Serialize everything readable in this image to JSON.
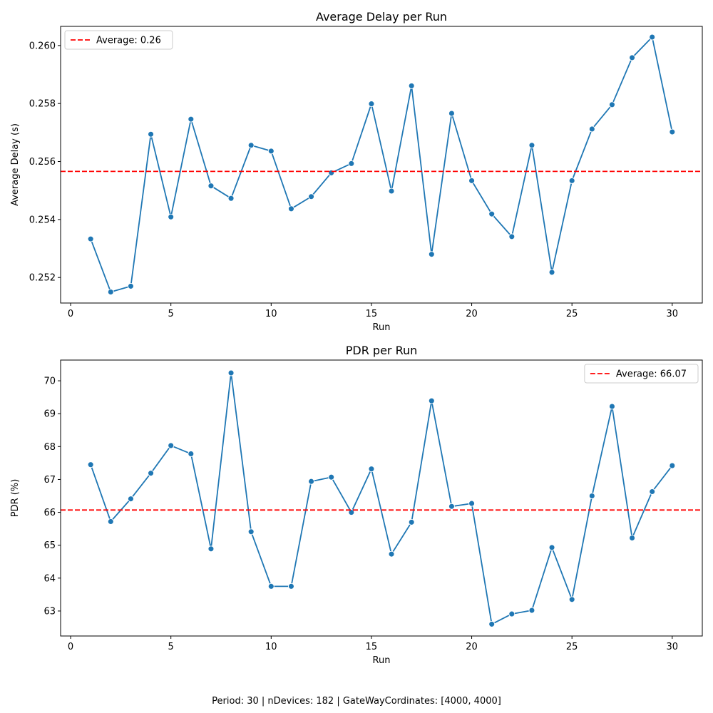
{
  "chart_data": [
    {
      "type": "line",
      "title": "Average Delay per Run",
      "xlabel": "Run",
      "ylabel": "Average Delay (s)",
      "xlim": [
        -0.5,
        31.5
      ],
      "ylim": [
        0.25112,
        0.26066
      ],
      "x_ticks": [
        0,
        5,
        10,
        15,
        20,
        25,
        30
      ],
      "x_tick_labels": [
        "0",
        "5",
        "10",
        "15",
        "20",
        "25",
        "30"
      ],
      "y_ticks": [
        0.252,
        0.254,
        0.256,
        0.258,
        0.26
      ],
      "y_tick_labels": [
        "0.252",
        "0.254",
        "0.256",
        "0.258",
        "0.260"
      ],
      "grid": false,
      "legend_position": "top-left",
      "series": [
        {
          "color": "#1f77b4",
          "marker": "circle",
          "x": [
            1,
            2,
            3,
            4,
            5,
            6,
            7,
            8,
            9,
            10,
            11,
            12,
            13,
            14,
            15,
            16,
            17,
            18,
            19,
            20,
            21,
            22,
            23,
            24,
            25,
            26,
            27,
            28,
            29,
            30
          ],
          "values": [
            0.25333,
            0.2515,
            0.2517,
            0.25694,
            0.25409,
            0.25746,
            0.25516,
            0.25473,
            0.25656,
            0.25636,
            0.25437,
            0.25479,
            0.25561,
            0.25593,
            0.25799,
            0.25498,
            0.25861,
            0.2528,
            0.25766,
            0.25534,
            0.25419,
            0.25341,
            0.25656,
            0.25218,
            0.25534,
            0.25712,
            0.25796,
            0.25958,
            0.26029,
            0.25702
          ]
        }
      ],
      "reference_line": {
        "label": "Average: 0.26",
        "value": 0.25566,
        "color": "#ff0000",
        "style": "dashed"
      }
    },
    {
      "type": "line",
      "title": "PDR per Run",
      "xlabel": "Run",
      "ylabel": "PDR (%)",
      "xlim": [
        -0.5,
        31.5
      ],
      "ylim": [
        62.24,
        70.63
      ],
      "x_ticks": [
        0,
        5,
        10,
        15,
        20,
        25,
        30
      ],
      "x_tick_labels": [
        "0",
        "5",
        "10",
        "15",
        "20",
        "25",
        "30"
      ],
      "y_ticks": [
        63,
        64,
        65,
        66,
        67,
        68,
        69,
        70
      ],
      "y_tick_labels": [
        "63",
        "64",
        "65",
        "66",
        "67",
        "68",
        "69",
        "70"
      ],
      "grid": false,
      "legend_position": "top-right",
      "series": [
        {
          "color": "#1f77b4",
          "marker": "circle",
          "x": [
            1,
            2,
            3,
            4,
            5,
            6,
            7,
            8,
            9,
            10,
            11,
            12,
            13,
            14,
            15,
            16,
            17,
            18,
            19,
            20,
            21,
            22,
            23,
            24,
            25,
            26,
            27,
            28,
            29,
            30
          ],
          "values": [
            67.45,
            65.72,
            66.41,
            67.19,
            68.03,
            67.78,
            64.89,
            70.24,
            65.41,
            63.75,
            63.75,
            66.94,
            67.07,
            66.0,
            67.32,
            64.73,
            65.7,
            69.39,
            66.18,
            66.27,
            62.6,
            62.91,
            63.02,
            64.93,
            63.35,
            66.5,
            69.22,
            65.22,
            66.63,
            67.42
          ]
        }
      ],
      "reference_line": {
        "label": "Average: 66.07",
        "value": 66.07,
        "color": "#ff0000",
        "style": "dashed"
      }
    }
  ],
  "caption": "Period: 30 | nDevices: 182 | GateWayCordinates: [4000, 4000]"
}
